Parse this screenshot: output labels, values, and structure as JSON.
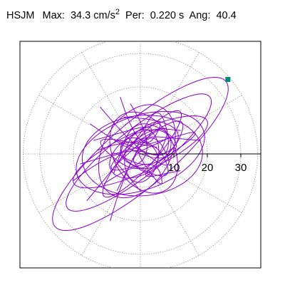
{
  "header": {
    "station": "HSJM",
    "max_label": "Max:",
    "max_value": "34.3",
    "max_unit": "cm/s",
    "max_unit_exp": "2",
    "per_label": "Per:",
    "per_value": "0.220 s",
    "ang_label": "Ang:",
    "ang_value": "40.4"
  },
  "chart_data": {
    "type": "polar-orbit",
    "title": "HSJM Max: 34.3 cm/s2 Per: 0.220 s Ang: 40.4",
    "max_amplitude": 34.3,
    "period_s": 0.22,
    "angle_deg": 40.4,
    "radial_ticks": [
      10,
      20,
      30
    ],
    "radial_tick_labels": [
      "10",
      "20",
      "30"
    ],
    "radial_max": 35,
    "spoke_step_deg": 30,
    "grid": true,
    "trace_color": "#8800cc",
    "peak_marker_color": "#008b73",
    "orbit_ellipses": [
      {
        "a": 33.5,
        "b": 9.5,
        "rot": 40.4,
        "cx": 0,
        "cy": 0
      },
      {
        "a": 27.0,
        "b": 7.0,
        "rot": 38,
        "cx": -0.5,
        "cy": 0.4
      },
      {
        "a": 20.0,
        "b": 11.0,
        "rot": 20,
        "cx": 0,
        "cy": 0.3
      },
      {
        "a": 18.0,
        "b": 12.0,
        "rot": 5,
        "cx": 0.6,
        "cy": -0.5
      },
      {
        "a": 15.0,
        "b": 10.0,
        "rot": 60,
        "cx": -1.0,
        "cy": 0.8
      },
      {
        "a": 13.0,
        "b": 9.0,
        "rot": 120,
        "cx": 1.0,
        "cy": 0.4
      },
      {
        "a": 10.0,
        "b": 6.0,
        "rot": 30,
        "cx": 0,
        "cy": 0
      },
      {
        "a": 8.0,
        "b": 5.0,
        "rot": 80,
        "cx": 0.4,
        "cy": -0.6
      },
      {
        "a": 6.0,
        "b": 4.0,
        "rot": 150,
        "cx": -0.3,
        "cy": 0.2
      },
      {
        "a": 22.0,
        "b": 6.0,
        "rot": 25,
        "cx": 0,
        "cy": 0.6
      },
      {
        "a": 17.0,
        "b": 4.0,
        "rot": 48,
        "cx": 0.5,
        "cy": 0
      }
    ],
    "orbit_segments": [
      [
        [
          -9,
          -20
        ],
        [
          -4,
          -2
        ],
        [
          7,
          10
        ],
        [
          -14,
          4
        ]
      ],
      [
        [
          -12,
          14
        ],
        [
          -2,
          2
        ],
        [
          11,
          -6
        ],
        [
          3,
          9
        ],
        [
          -7,
          -11
        ]
      ],
      [
        [
          -18,
          -3
        ],
        [
          6,
          4
        ],
        [
          21,
          8
        ],
        [
          -3,
          -8
        ],
        [
          12,
          -5
        ]
      ],
      [
        [
          -6,
          17
        ],
        [
          0,
          -2
        ],
        [
          9,
          13
        ],
        [
          -10,
          1
        ],
        [
          4,
          -7
        ]
      ],
      [
        [
          -15,
          9
        ],
        [
          3,
          -4
        ],
        [
          14,
          3
        ],
        [
          -2,
          12
        ],
        [
          -8,
          -6
        ]
      ],
      [
        [
          -11,
          -9
        ],
        [
          4,
          1
        ],
        [
          8,
          -13
        ],
        [
          -5,
          6
        ],
        [
          18,
          4
        ]
      ],
      [
        [
          -20,
          -8
        ],
        [
          -6,
          3
        ],
        [
          9,
          -2
        ],
        [
          15,
          13
        ],
        [
          -4,
          2
        ]
      ],
      [
        [
          -3,
          15
        ],
        [
          7,
          -1
        ],
        [
          -13,
          -7
        ],
        [
          2,
          8
        ],
        [
          12,
          7
        ]
      ],
      [
        [
          -16,
          -14
        ],
        [
          -1,
          4
        ],
        [
          6,
          16
        ],
        [
          10,
          -3
        ],
        [
          -7,
          4
        ]
      ],
      [
        [
          -5,
          11
        ],
        [
          16,
          10
        ],
        [
          4,
          -6
        ],
        [
          -12,
          3
        ],
        [
          0,
          -11
        ]
      ],
      [
        [
          -8,
          -4
        ],
        [
          12,
          15
        ],
        [
          2,
          -9
        ],
        [
          -17,
          6
        ],
        [
          5,
          2
        ]
      ],
      [
        [
          -13,
          1
        ],
        [
          3,
          7
        ],
        [
          11,
          -9
        ],
        [
          -6,
          -2
        ],
        [
          9,
          5
        ]
      ]
    ],
    "peak_point": {
      "amplitude": 34.3,
      "angle_deg": 40.4
    }
  }
}
